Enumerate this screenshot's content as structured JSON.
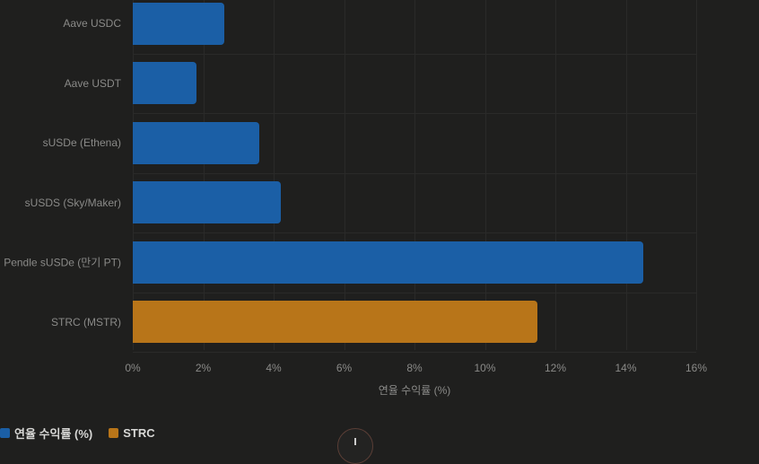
{
  "chart_data": {
    "type": "bar",
    "orientation": "horizontal",
    "title": "",
    "xlabel": "연율 수익률 (%)",
    "ylabel": "",
    "xlim": [
      0,
      16
    ],
    "grid": true,
    "x_ticks": [
      "0%",
      "2%",
      "4%",
      "6%",
      "8%",
      "10%",
      "12%",
      "14%",
      "16%"
    ],
    "categories": [
      "Aave USDC",
      "Aave USDT",
      "sUSDe (Ethena)",
      "sUSDS (Sky/Maker)",
      "Pendle sUSDe (만기 PT)",
      "STRC (MSTR)"
    ],
    "values": [
      2.6,
      1.8,
      3.6,
      4.2,
      14.5,
      11.5
    ],
    "bar_colors": [
      "#1b5fa6",
      "#1b5fa6",
      "#1b5fa6",
      "#1b5fa6",
      "#1b5fa6",
      "#b87519"
    ],
    "series": [
      {
        "name": "연율 수익률 (%)",
        "color": "#1b5fa6",
        "values": [
          2.6,
          1.8,
          3.6,
          4.2,
          14.5,
          null
        ]
      },
      {
        "name": "STRC",
        "color": "#b87519",
        "values": [
          null,
          null,
          null,
          null,
          null,
          11.5
        ]
      }
    ],
    "legend_position": "bottom-left"
  },
  "legend": {
    "items": [
      {
        "label": "연율 수익률 (%)",
        "color": "#1b5fa6"
      },
      {
        "label": "STRC",
        "color": "#b87519"
      }
    ]
  },
  "fab": {
    "icon": "plus-icon"
  }
}
